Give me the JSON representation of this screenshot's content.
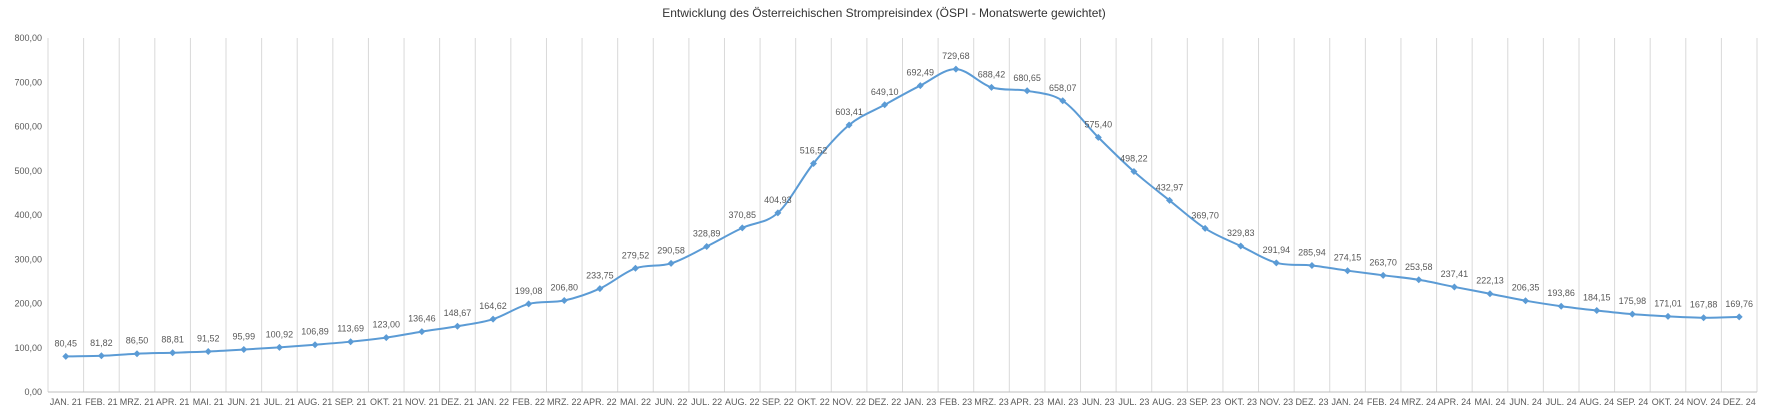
{
  "chart_data": {
    "type": "line",
    "title": "Entwicklung des Österreichischen Strompreisindex (ÖSPI - Monatswerte gewichtet)",
    "xlabel": "",
    "ylabel": "",
    "ylim": [
      0,
      800
    ],
    "y_ticks": [
      "0,00",
      "100,00",
      "200,00",
      "300,00",
      "400,00",
      "500,00",
      "600,00",
      "700,00",
      "800,00"
    ],
    "grid": "vertical",
    "legend": "none",
    "color": "#5B9BD5",
    "categories": [
      "JAN. 21",
      "FEB. 21",
      "MRZ. 21",
      "APR. 21",
      "MAI. 21",
      "JUN. 21",
      "JUL. 21",
      "AUG. 21",
      "SEP. 21",
      "OKT. 21",
      "NOV. 21",
      "DEZ. 21",
      "JAN. 22",
      "FEB. 22",
      "MRZ. 22",
      "APR. 22",
      "MAI. 22",
      "JUN. 22",
      "JUL. 22",
      "AUG. 22",
      "SEP. 22",
      "OKT. 22",
      "NOV. 22",
      "DEZ. 22",
      "JAN. 23",
      "FEB. 23",
      "MRZ. 23",
      "APR. 23",
      "MAI. 23",
      "JUN. 23",
      "JUL. 23",
      "AUG. 23",
      "SEP. 23",
      "OKT. 23",
      "NOV. 23",
      "DEZ. 23",
      "JAN. 24",
      "FEB. 24",
      "MRZ. 24",
      "APR. 24",
      "MAI. 24",
      "JUN. 24",
      "JUL. 24",
      "AUG. 24",
      "SEP. 24",
      "OKT. 24",
      "NOV. 24",
      "DEZ. 24"
    ],
    "values": [
      80.45,
      81.82,
      86.5,
      88.81,
      91.52,
      95.99,
      100.92,
      106.89,
      113.69,
      123.0,
      136.46,
      148.67,
      164.62,
      199.08,
      206.8,
      233.75,
      279.52,
      290.58,
      328.89,
      370.85,
      404.93,
      516.52,
      603.41,
      649.1,
      692.49,
      729.68,
      688.42,
      680.65,
      658.07,
      575.4,
      498.22,
      432.97,
      369.7,
      329.83,
      291.94,
      285.94,
      274.15,
      263.7,
      253.58,
      237.41,
      222.13,
      206.35,
      193.86,
      184.15,
      175.98,
      171.01,
      167.88,
      169.76
    ],
    "value_labels": [
      "80,45",
      "81,82",
      "86,50",
      "88,81",
      "91,52",
      "95,99",
      "100,92",
      "106,89",
      "113,69",
      "123,00",
      "136,46",
      "148,67",
      "164,62",
      "199,08",
      "206,80",
      "233,75",
      "279,52",
      "290,58",
      "328,89",
      "370,85",
      "404,93",
      "516,52",
      "603,41",
      "649,10",
      "692,49",
      "729,68",
      "688,42",
      "680,65",
      "658,07",
      "575,40",
      "498,22",
      "432,97",
      "369,70",
      "329,83",
      "291,94",
      "285,94",
      "274,15",
      "263,70",
      "253,58",
      "237,41",
      "222,13",
      "206,35",
      "193,86",
      "184,15",
      "175,98",
      "171,01",
      "167,88",
      "169,76"
    ]
  }
}
